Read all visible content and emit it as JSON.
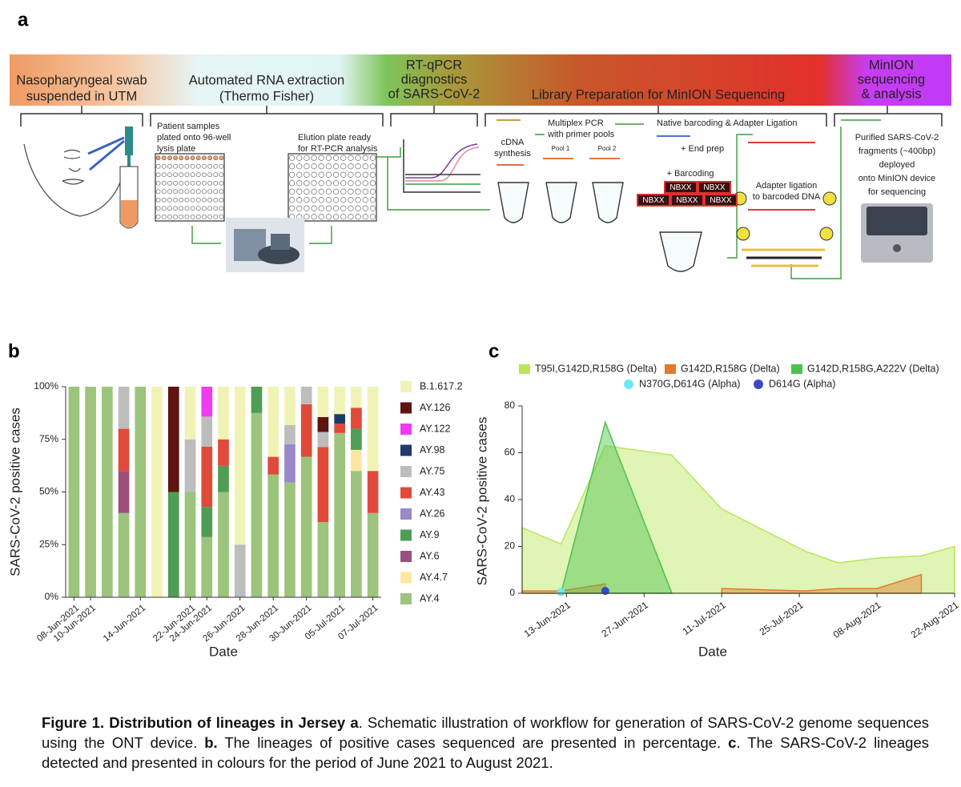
{
  "panel_labels": [
    "a",
    "b",
    "c"
  ],
  "diagram": {
    "headers": [
      {
        "lines": [
          "Nasopharyngeal swab",
          "suspended in UTM"
        ]
      },
      {
        "lines": [
          "Automated RNA extraction",
          "(Thermo Fisher)"
        ]
      },
      {
        "lines": [
          "RT-qPCR",
          "diagnostics",
          "of SARS-CoV-2"
        ]
      },
      {
        "lines": [
          "Library Preparation for MinION Sequencing"
        ]
      },
      {
        "lines": [
          "MinION",
          "sequencing",
          "& analysis"
        ]
      }
    ],
    "notes": [
      {
        "lines": [
          "Patient samples",
          "plated onto 96-well",
          "lysis plate"
        ]
      },
      {
        "lines": [
          "Elution plate ready",
          "for RT-PCR analysis"
        ]
      },
      {
        "lines": [
          "cDNA",
          "synthesis"
        ]
      },
      {
        "lines": [
          "Multiplex PCR",
          "with primer pools"
        ]
      },
      {
        "lines": [
          "Pool 1"
        ]
      },
      {
        "lines": [
          "Pool 2"
        ]
      },
      {
        "lines": [
          "Native barcoding & Adapter Ligation"
        ]
      },
      {
        "lines": [
          "+ End prep"
        ]
      },
      {
        "lines": [
          "+ Barcoding"
        ]
      },
      {
        "lines": [
          "Adapter  ligation",
          "to barcoded DNA"
        ]
      },
      {
        "lines": [
          "Purified SARS-CoV-2",
          "fragments (~400bp)",
          "deployed",
          "onto MinION device",
          "for sequencing"
        ]
      }
    ],
    "barcodes": [
      "NBXX",
      "NBXX",
      "NBXX",
      "NBXX",
      "NBXX"
    ]
  },
  "chart_data": [
    {
      "type": "bar",
      "stacked": true,
      "y_label": "SARS-CoV-2 positive cases",
      "x_label": "Date",
      "categories": [
        "08-Jun-2021",
        "10-Jun-2021",
        null,
        null,
        "14-Jun-2021",
        null,
        null,
        "22-Jun-2021",
        "24-Jun-2021",
        null,
        "26-Jun-2021",
        null,
        "28-Jun-2021",
        null,
        "30-Jun-2021",
        null,
        "05-Jul-2021",
        null,
        "07-Jul-2021"
      ],
      "ylim": [
        0,
        100
      ],
      "yticks": [
        {
          "value": 0,
          "label": "0%"
        },
        {
          "value": 25,
          "label": "25%"
        },
        {
          "value": 50,
          "label": "50%"
        },
        {
          "value": 75,
          "label": "75%"
        },
        {
          "value": 100,
          "label": "100%"
        }
      ],
      "legend": "right",
      "series": [
        {
          "name": "B.1.617.2",
          "color": "#f1f2b6",
          "values": [
            0,
            0,
            0,
            0,
            0,
            100,
            0,
            25,
            0,
            25,
            75,
            0,
            33.3,
            18.2,
            0,
            14.4,
            13,
            10,
            40
          ]
        },
        {
          "name": "AY.126",
          "color": "#5e1410",
          "values": [
            0,
            0,
            0,
            0,
            0,
            0,
            50,
            0,
            0,
            0,
            0,
            0,
            0,
            0,
            0,
            7.1,
            0,
            0,
            0
          ]
        },
        {
          "name": "AY.122",
          "color": "#ee3cee",
          "values": [
            0,
            0,
            0,
            0,
            0,
            0,
            0,
            0,
            14.2,
            0,
            0,
            0,
            0,
            0,
            0,
            0,
            0,
            0,
            0
          ]
        },
        {
          "name": "AY.98",
          "color": "#1d3a6a",
          "values": [
            0,
            0,
            0,
            0,
            0,
            0,
            0,
            0,
            0,
            0,
            0,
            0,
            0,
            0,
            0,
            0,
            4.5,
            0,
            0
          ]
        },
        {
          "name": "AY.75",
          "color": "#bdbdbd",
          "values": [
            0,
            0,
            0,
            20,
            0,
            0,
            0,
            25,
            14.3,
            0,
            25,
            0,
            0,
            9.1,
            8.3,
            7.1,
            0,
            0,
            0
          ]
        },
        {
          "name": "AY.43",
          "color": "#e04a3a",
          "values": [
            0,
            0,
            0,
            20,
            0,
            0,
            0,
            0,
            28.6,
            12.5,
            0,
            0,
            8.4,
            0,
            25,
            35.7,
            4.5,
            10,
            20
          ]
        },
        {
          "name": "AY.26",
          "color": "#9a88c8",
          "values": [
            0,
            0,
            0,
            0,
            0,
            0,
            0,
            0,
            0,
            0,
            0,
            0,
            0,
            18.2,
            0,
            0,
            0,
            0,
            0
          ]
        },
        {
          "name": "AY.9",
          "color": "#4e9d55",
          "values": [
            0,
            0,
            0,
            0,
            0,
            0,
            50,
            0,
            14.3,
            12.5,
            0,
            12.5,
            0,
            0,
            0,
            0,
            0,
            10,
            0
          ]
        },
        {
          "name": "AY.6",
          "color": "#9b4f7b",
          "values": [
            0,
            0,
            0,
            20,
            0,
            0,
            0,
            0,
            0,
            0,
            0,
            0,
            0,
            0,
            0,
            0,
            0,
            0,
            0
          ]
        },
        {
          "name": "AY.4.7",
          "color": "#fde6a2",
          "values": [
            0,
            0,
            0,
            0,
            0,
            0,
            0,
            0,
            0,
            0,
            0,
            0,
            0,
            0,
            0,
            0,
            0,
            10,
            0
          ]
        },
        {
          "name": "AY.4",
          "color": "#9cc47c",
          "values": [
            100,
            100,
            100,
            40,
            100,
            0,
            0,
            50,
            28.6,
            50,
            0,
            87.5,
            58.3,
            54.5,
            66.7,
            35.7,
            78,
            60,
            40
          ]
        }
      ]
    },
    {
      "type": "area",
      "y_label": "SARS-CoV-2 positive cases",
      "x_label": "Date",
      "x": [
        "2021-06-05",
        "2021-06-12",
        "2021-06-20",
        "2021-07-02",
        "2021-07-11",
        "2021-07-26",
        "2021-08-01",
        "2021-08-08",
        "2021-08-16",
        "2021-08-22"
      ],
      "xlim": [
        "2021-06-05",
        "2021-08-22"
      ],
      "xticks": [
        {
          "value": "2021-06-13",
          "label": "13-Jun-2021"
        },
        {
          "value": "2021-06-27",
          "label": "27-Jun-2021"
        },
        {
          "value": "2021-07-11",
          "label": "11-Jul-2021"
        },
        {
          "value": "2021-07-25",
          "label": "25-Jul-2021"
        },
        {
          "value": "2021-08-08",
          "label": "08-Aug-2021"
        },
        {
          "value": "2021-08-22",
          "label": "22-Aug-2021"
        }
      ],
      "ylim": [
        0,
        80
      ],
      "yticks": [
        0,
        20,
        40,
        60,
        80
      ],
      "legend": "top",
      "series": [
        {
          "name": "T95I,G142D,R158G (Delta)",
          "type": "area",
          "color": "#b8e65a",
          "values": [
            28,
            21,
            63,
            59,
            36,
            18,
            13,
            15,
            16,
            20
          ]
        },
        {
          "name": "G142D,R158G (Delta)",
          "type": "area",
          "color": "#e07b2a",
          "values": [
            1,
            1,
            4,
            null,
            2,
            1,
            2,
            2,
            8,
            null
          ]
        },
        {
          "name": "G142D,R158G,A222V (Delta)",
          "type": "area",
          "color": "#4cc24c",
          "values": [
            null,
            0,
            73,
            0,
            null,
            null,
            null,
            null,
            null,
            null
          ]
        },
        {
          "name": "N370G,D614G (Alpha)",
          "type": "scatter",
          "color": "#6ee8f0",
          "values": [
            null,
            0.5,
            null,
            null,
            null,
            null,
            null,
            null,
            null,
            null
          ]
        },
        {
          "name": "D614G (Alpha)",
          "type": "scatter",
          "color": "#3a48c8",
          "values": [
            null,
            null,
            1,
            null,
            null,
            null,
            null,
            null,
            null,
            null
          ]
        }
      ]
    }
  ],
  "caption": [
    {
      "text": "Figure 1. Distribution of lineages in Jersey a",
      "bold": true
    },
    {
      "text": ". Schematic illustration of workflow for generation of SARS-CoV-2 genome sequences using the ONT device. ",
      "bold": false
    },
    {
      "text": "b.",
      "bold": true
    },
    {
      "text": " The lineages of positive cases sequenced are presented in percentage. ",
      "bold": false
    },
    {
      "text": "c",
      "bold": true
    },
    {
      "text": ". The SARS-CoV-2 lineages detected and presented in colours for the period of June 2021 to August 2021.",
      "bold": false
    }
  ]
}
